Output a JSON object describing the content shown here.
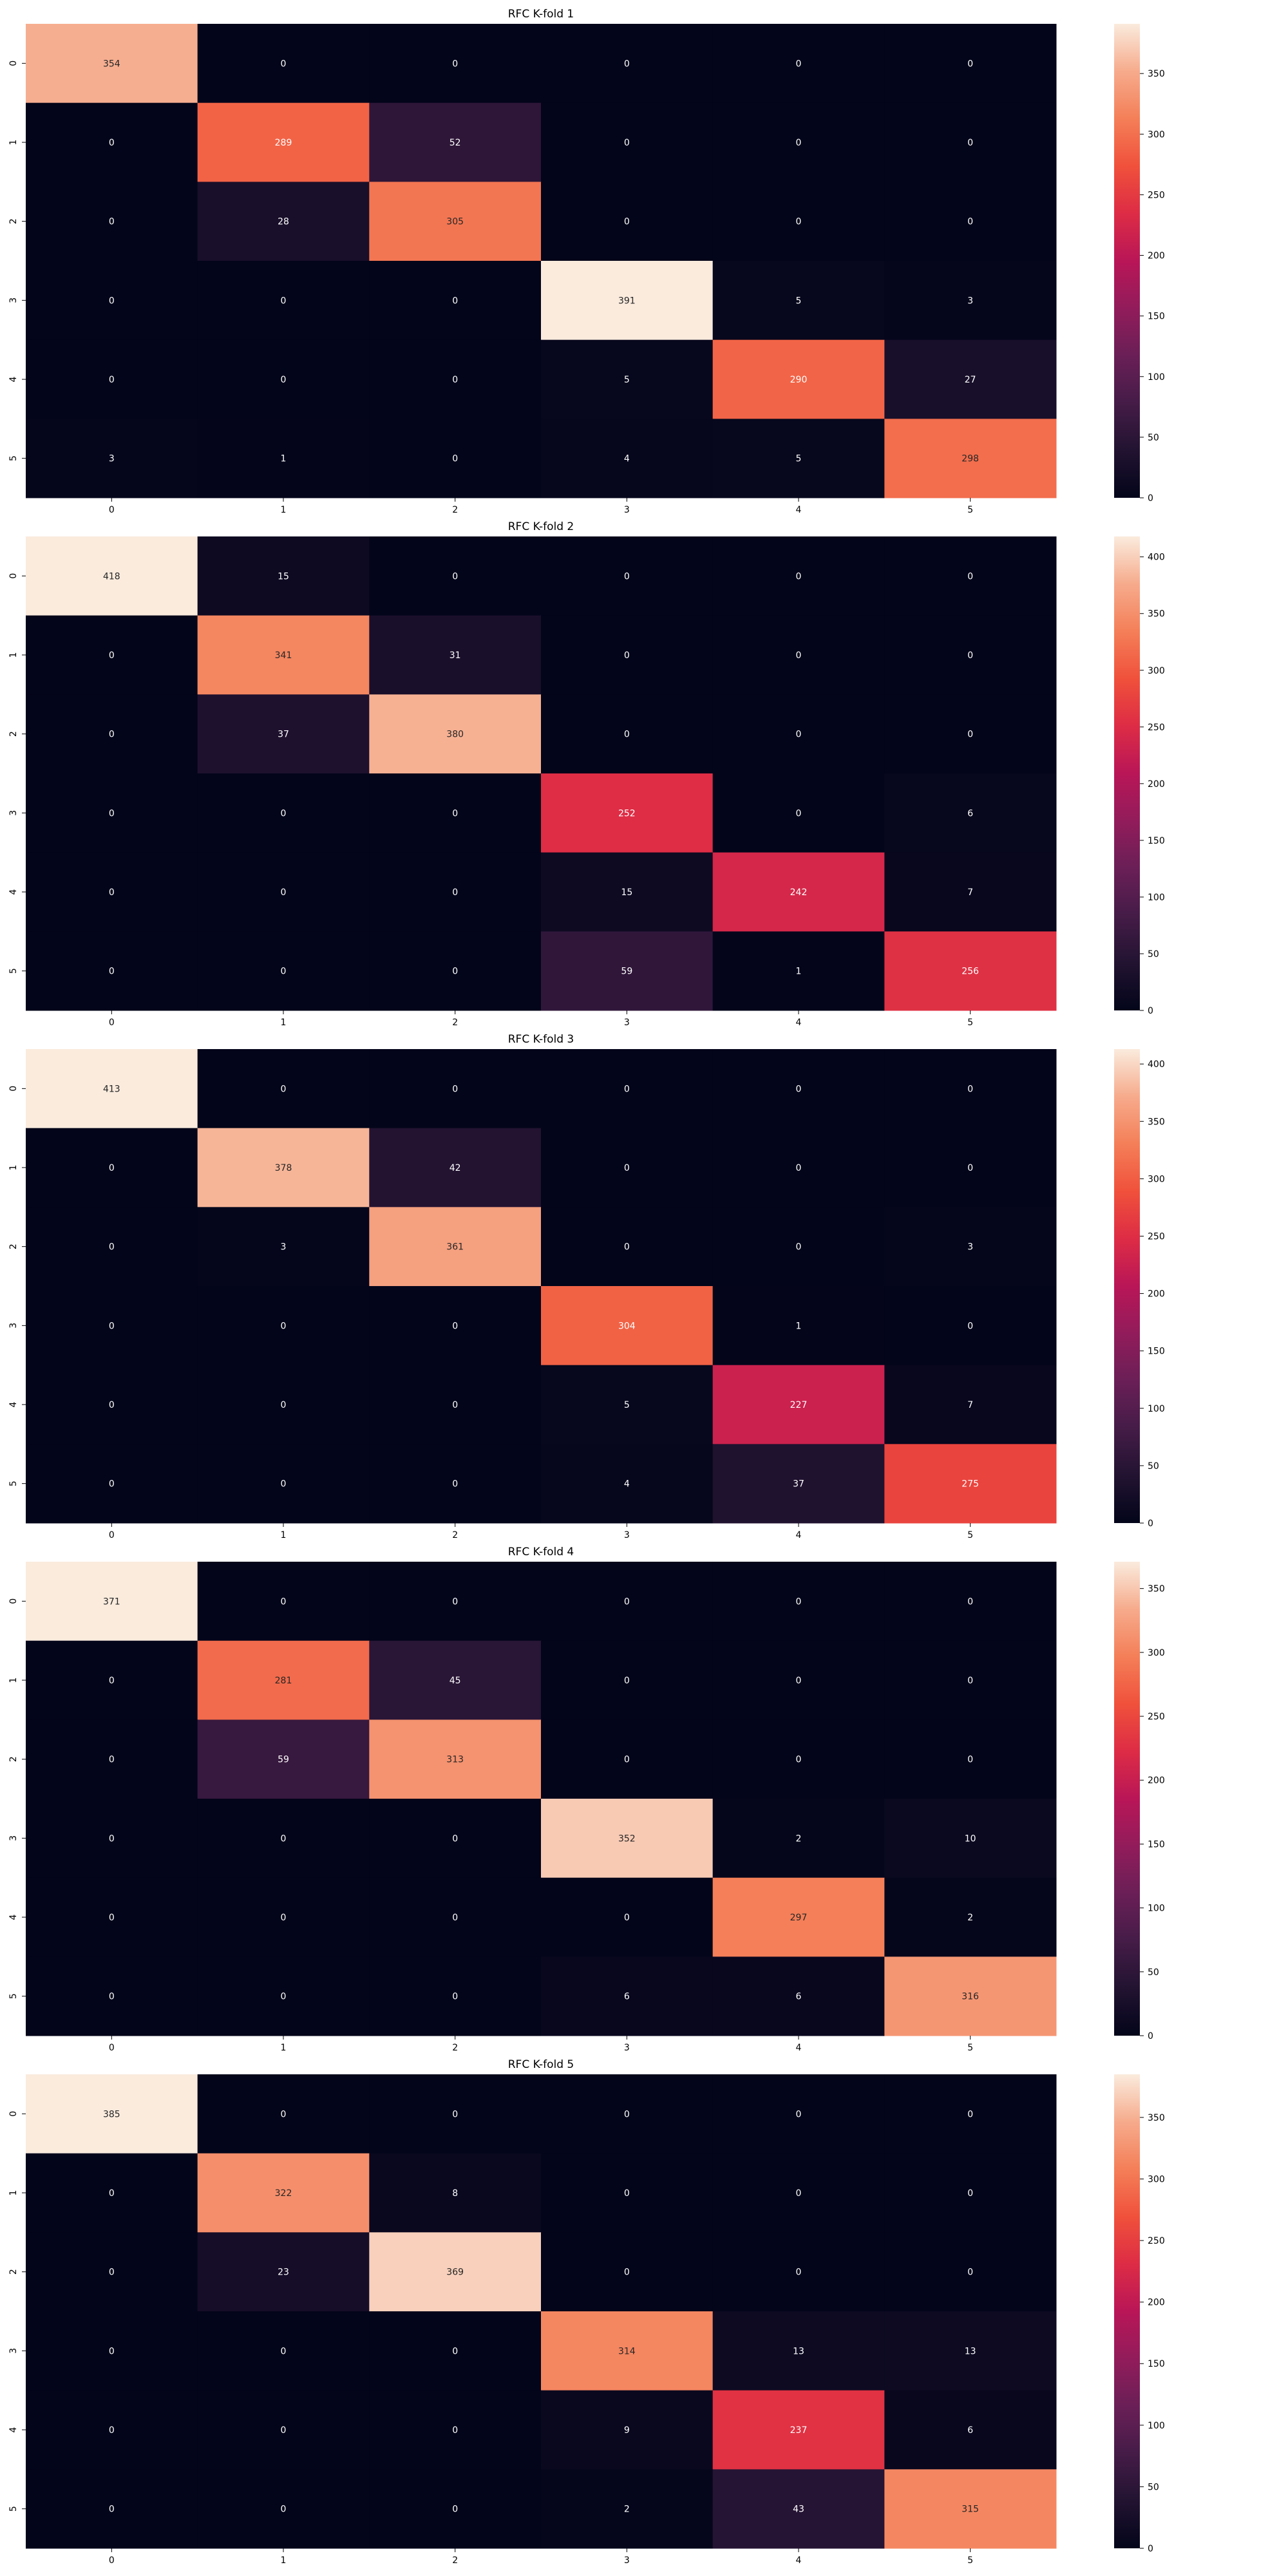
{
  "chart_data": [
    {
      "type": "heatmap",
      "title": "RFC K-fold 1",
      "x_tick_labels": [
        "0",
        "1",
        "2",
        "3",
        "4",
        "5"
      ],
      "y_tick_labels": [
        "0",
        "1",
        "2",
        "3",
        "4",
        "5"
      ],
      "values": [
        [
          354,
          0,
          0,
          0,
          0,
          0
        ],
        [
          0,
          289,
          52,
          0,
          0,
          0
        ],
        [
          0,
          28,
          305,
          0,
          0,
          0
        ],
        [
          0,
          0,
          0,
          391,
          5,
          3
        ],
        [
          0,
          0,
          0,
          5,
          290,
          27
        ],
        [
          3,
          1,
          0,
          4,
          5,
          298
        ]
      ],
      "colorbar_ticks": [
        0,
        50,
        100,
        150,
        200,
        250,
        300,
        350
      ],
      "vmin": 0,
      "vmax": 391,
      "colormap": "rocket"
    },
    {
      "type": "heatmap",
      "title": "RFC K-fold 2",
      "x_tick_labels": [
        "0",
        "1",
        "2",
        "3",
        "4",
        "5"
      ],
      "y_tick_labels": [
        "0",
        "1",
        "2",
        "3",
        "4",
        "5"
      ],
      "values": [
        [
          418,
          15,
          0,
          0,
          0,
          0
        ],
        [
          0,
          341,
          31,
          0,
          0,
          0
        ],
        [
          0,
          37,
          380,
          0,
          0,
          0
        ],
        [
          0,
          0,
          0,
          252,
          0,
          6
        ],
        [
          0,
          0,
          0,
          15,
          242,
          7
        ],
        [
          0,
          0,
          0,
          59,
          1,
          256
        ]
      ],
      "colorbar_ticks": [
        0,
        50,
        100,
        150,
        200,
        250,
        300,
        350,
        400
      ],
      "vmin": 0,
      "vmax": 418,
      "colormap": "rocket"
    },
    {
      "type": "heatmap",
      "title": "RFC K-fold 3",
      "x_tick_labels": [
        "0",
        "1",
        "2",
        "3",
        "4",
        "5"
      ],
      "y_tick_labels": [
        "0",
        "1",
        "2",
        "3",
        "4",
        "5"
      ],
      "values": [
        [
          413,
          0,
          0,
          0,
          0,
          0
        ],
        [
          0,
          378,
          42,
          0,
          0,
          0
        ],
        [
          0,
          3,
          361,
          0,
          0,
          3
        ],
        [
          0,
          0,
          0,
          304,
          1,
          0
        ],
        [
          0,
          0,
          0,
          5,
          227,
          7
        ],
        [
          0,
          0,
          0,
          4,
          37,
          275
        ]
      ],
      "colorbar_ticks": [
        0,
        50,
        100,
        150,
        200,
        250,
        300,
        350,
        400
      ],
      "vmin": 0,
      "vmax": 413,
      "colormap": "rocket"
    },
    {
      "type": "heatmap",
      "title": "RFC K-fold 4",
      "x_tick_labels": [
        "0",
        "1",
        "2",
        "3",
        "4",
        "5"
      ],
      "y_tick_labels": [
        "0",
        "1",
        "2",
        "3",
        "4",
        "5"
      ],
      "values": [
        [
          371,
          0,
          0,
          0,
          0,
          0
        ],
        [
          0,
          281,
          45,
          0,
          0,
          0
        ],
        [
          0,
          59,
          313,
          0,
          0,
          0
        ],
        [
          0,
          0,
          0,
          352,
          2,
          10
        ],
        [
          0,
          0,
          0,
          0,
          297,
          2
        ],
        [
          0,
          0,
          0,
          6,
          6,
          316
        ]
      ],
      "colorbar_ticks": [
        0,
        50,
        100,
        150,
        200,
        250,
        300,
        350
      ],
      "vmin": 0,
      "vmax": 371,
      "colormap": "rocket"
    },
    {
      "type": "heatmap",
      "title": "RFC K-fold 5",
      "x_tick_labels": [
        "0",
        "1",
        "2",
        "3",
        "4",
        "5"
      ],
      "y_tick_labels": [
        "0",
        "1",
        "2",
        "3",
        "4",
        "5"
      ],
      "values": [
        [
          385,
          0,
          0,
          0,
          0,
          0
        ],
        [
          0,
          322,
          8,
          0,
          0,
          0
        ],
        [
          0,
          23,
          369,
          0,
          0,
          0
        ],
        [
          0,
          0,
          0,
          314,
          13,
          13
        ],
        [
          0,
          0,
          0,
          9,
          237,
          6
        ],
        [
          0,
          0,
          0,
          2,
          43,
          315
        ]
      ],
      "colorbar_ticks": [
        0,
        50,
        100,
        150,
        200,
        250,
        300,
        350
      ],
      "vmin": 0,
      "vmax": 385,
      "colormap": "rocket"
    }
  ]
}
